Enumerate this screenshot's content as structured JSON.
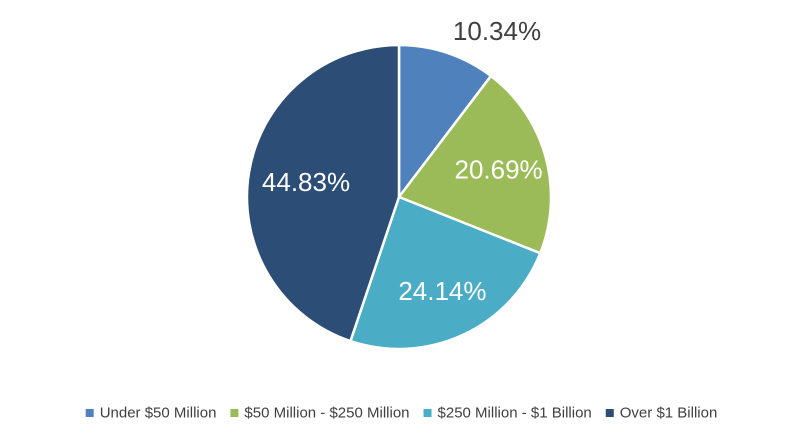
{
  "chart_data": {
    "type": "pie",
    "title": "",
    "start_angle_deg": 0,
    "direction": "clockwise",
    "slices": [
      {
        "name": "Under $50 Million",
        "value": 10.34,
        "label": "10.34%",
        "color": "#4F81BD",
        "label_color": "#404040"
      },
      {
        "name": "$50 Million - $250 Million",
        "value": 20.69,
        "label": "20.69%",
        "color": "#9BBB59",
        "label_color": "#ffffff"
      },
      {
        "name": "$250 Million - $1 Billion",
        "value": 24.14,
        "label": "24.14%",
        "color": "#4BACC6",
        "label_color": "#ffffff"
      },
      {
        "name": "Over $1 Billion",
        "value": 44.83,
        "label": "44.83%",
        "color": "#2C4D75",
        "label_color": "#ffffff"
      }
    ],
    "legend": {
      "position": "bottom",
      "entries": [
        "Under $50 Million",
        "$50 Million - $250 Million",
        "$250 Million - $1 Billion",
        "Over $1 Billion"
      ]
    }
  }
}
